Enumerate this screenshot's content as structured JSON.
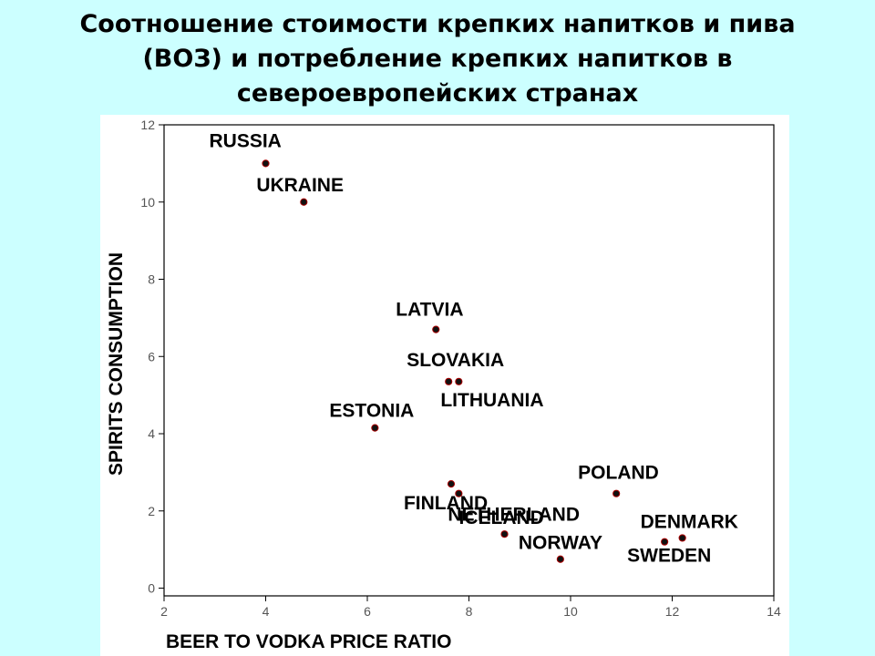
{
  "title_lines": [
    "Соотношение стоимости крепких напитков и пива",
    "(ВОЗ) и потребление крепких напитков в",
    "североевропейских странах"
  ],
  "chart_data": {
    "type": "scatter",
    "xlabel": "BEER TO VODKA PRICE RATIO",
    "ylabel": "SPIRITS CONSUMPTION",
    "xlim": [
      2,
      14
    ],
    "ylim": [
      -0.2,
      12
    ],
    "xticks": [
      2,
      4,
      6,
      8,
      10,
      12,
      14
    ],
    "yticks": [
      0,
      2,
      4,
      6,
      8,
      10,
      12
    ],
    "grid": false,
    "points": [
      {
        "label": "RUSSIA",
        "x": 4.0,
        "y": 11.0
      },
      {
        "label": "UKRAINE",
        "x": 4.75,
        "y": 10.0
      },
      {
        "label": "LATVIA",
        "x": 7.35,
        "y": 6.7
      },
      {
        "label": "SLOVAKIA",
        "x": 7.6,
        "y": 5.35
      },
      {
        "label": "LITHUANIA",
        "x": 7.8,
        "y": 5.35
      },
      {
        "label": "ESTONIA",
        "x": 6.15,
        "y": 4.15
      },
      {
        "label": "FINLAND",
        "x": 7.65,
        "y": 2.7
      },
      {
        "label": "NETHERLAND",
        "x": 7.8,
        "y": 2.45
      },
      {
        "label": "POLAND",
        "x": 10.9,
        "y": 2.45
      },
      {
        "label": "ICELAND",
        "x": 8.7,
        "y": 1.4
      },
      {
        "label": "NORWAY",
        "x": 9.8,
        "y": 0.75
      },
      {
        "label": "DENMARK",
        "x": 12.2,
        "y": 1.3
      },
      {
        "label": "SWEDEN",
        "x": 11.85,
        "y": 1.2
      }
    ]
  }
}
